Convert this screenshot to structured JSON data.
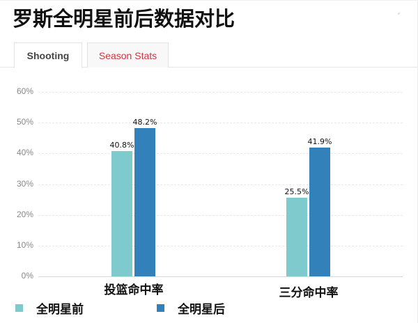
{
  "header": {
    "title": "罗斯全明星前后数据对比"
  },
  "tabs": [
    {
      "label": "Shooting",
      "active": true
    },
    {
      "label": "Season Stats",
      "active": false
    }
  ],
  "colors": {
    "before": "#7ecacd",
    "after": "#3381bb",
    "tab_inactive_text": "#d0343a"
  },
  "chart_data": {
    "type": "bar",
    "title": "罗斯全明星前后数据对比",
    "categories": [
      "投篮命中率",
      "三分命中率"
    ],
    "series": [
      {
        "name": "全明星前",
        "values": [
          40.8,
          25.5
        ],
        "labels": [
          "40.8%",
          "25.5%"
        ],
        "color": "#7ecacd"
      },
      {
        "name": "全明星后",
        "values": [
          48.2,
          41.9
        ],
        "labels": [
          "48.2%",
          "41.9%"
        ],
        "color": "#3381bb"
      }
    ],
    "xlabel": "",
    "ylabel": "",
    "ylim": [
      0,
      60
    ],
    "yticks": [
      "0%",
      "10%",
      "20%",
      "30%",
      "40%",
      "50%",
      "60%"
    ],
    "grid": true,
    "legend_position": "bottom-left"
  }
}
